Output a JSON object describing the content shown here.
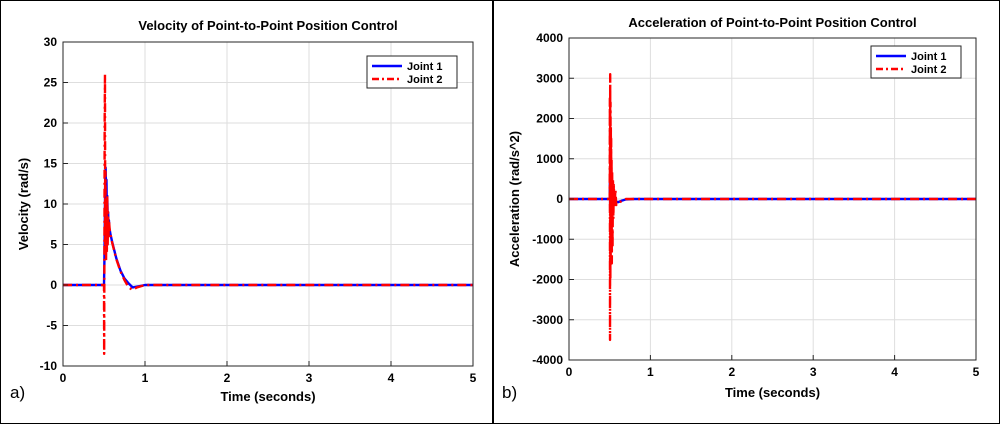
{
  "chart_data": [
    {
      "type": "line",
      "panel_label": "a)",
      "title": "Velocity of Point-to-Point Position Control",
      "xlabel": "Time (seconds)",
      "ylabel": "Velocity (rad/s)",
      "xlim": [
        0,
        5
      ],
      "ylim": [
        -10,
        30
      ],
      "xticks": [
        0,
        1,
        2,
        3,
        4,
        5
      ],
      "yticks": [
        -10,
        -5,
        0,
        5,
        10,
        15,
        20,
        25,
        30
      ],
      "grid": true,
      "legend_position": "top-right",
      "series": [
        {
          "name": "Joint 1",
          "color": "#0000ff",
          "style": "solid",
          "x": [
            0,
            0.5,
            0.505,
            0.51,
            0.515,
            0.52,
            0.525,
            0.53,
            0.535,
            0.54,
            0.545,
            0.55,
            0.555,
            0.56,
            0.565,
            0.57,
            0.575,
            0.58,
            0.6,
            0.62,
            0.65,
            0.7,
            0.75,
            0.8,
            0.85,
            0.9,
            1.0,
            5.0
          ],
          "y": [
            0,
            0,
            3,
            8,
            13,
            14.5,
            11,
            13,
            9,
            11,
            8.5,
            9,
            7.5,
            8,
            7,
            6.8,
            6.5,
            6.2,
            5.3,
            4.5,
            3.3,
            1.8,
            0.8,
            0.2,
            -0.3,
            -0.2,
            0,
            0
          ]
        },
        {
          "name": "Joint 2",
          "color": "#ff0000",
          "style": "dashdot",
          "x": [
            0,
            0.5,
            0.502,
            0.505,
            0.508,
            0.512,
            0.515,
            0.518,
            0.52,
            0.525,
            0.53,
            0.535,
            0.54,
            0.545,
            0.55,
            0.555,
            0.56,
            0.57,
            0.58,
            0.6,
            0.62,
            0.65,
            0.7,
            0.75,
            0.8,
            0.85,
            0.9,
            1.0,
            5.0
          ],
          "y": [
            0,
            0,
            -8.5,
            4,
            20,
            26,
            5,
            14,
            9,
            3,
            10,
            4,
            11,
            5,
            9,
            6,
            8,
            6.8,
            6.2,
            5.2,
            4.4,
            3.2,
            1.7,
            0.6,
            -0.3,
            -0.6,
            -0.3,
            0,
            0
          ]
        }
      ]
    },
    {
      "type": "line",
      "panel_label": "b)",
      "title": "Acceleration of Point-to-Point Position Control",
      "xlabel": "Time (seconds)",
      "ylabel": "Acceleration (rad/s^2)",
      "xlim": [
        0,
        5
      ],
      "ylim": [
        -4000,
        4000
      ],
      "xticks": [
        0,
        1,
        2,
        3,
        4,
        5
      ],
      "yticks": [
        -4000,
        -3000,
        -2000,
        -1000,
        0,
        1000,
        2000,
        3000,
        4000
      ],
      "grid": true,
      "legend_position": "top-right",
      "series": [
        {
          "name": "Joint 1",
          "color": "#0000ff",
          "style": "solid",
          "x": [
            0,
            0.5,
            0.503,
            0.506,
            0.51,
            0.515,
            0.52,
            0.525,
            0.53,
            0.54,
            0.55,
            0.56,
            0.58,
            0.6,
            0.65,
            0.7,
            0.8,
            5.0
          ],
          "y": [
            0,
            0,
            500,
            -300,
            400,
            -200,
            250,
            -150,
            150,
            -120,
            80,
            -100,
            -60,
            -80,
            -40,
            -10,
            0,
            0
          ]
        },
        {
          "name": "Joint 2",
          "color": "#ff0000",
          "style": "dashdot",
          "x": [
            0,
            0.5,
            0.502,
            0.504,
            0.506,
            0.508,
            0.51,
            0.512,
            0.514,
            0.516,
            0.518,
            0.52,
            0.523,
            0.526,
            0.53,
            0.535,
            0.54,
            0.545,
            0.55,
            0.56,
            0.57,
            0.58,
            0.6,
            0.65,
            0.7,
            0.8,
            5.0
          ],
          "y": [
            0,
            0,
            2500,
            -3500,
            3100,
            -2000,
            2400,
            -1500,
            1800,
            -1300,
            1500,
            -1000,
            1000,
            -1600,
            700,
            -1200,
            500,
            -500,
            350,
            -200,
            250,
            -150,
            -100,
            -50,
            0,
            0,
            0
          ]
        }
      ]
    }
  ]
}
